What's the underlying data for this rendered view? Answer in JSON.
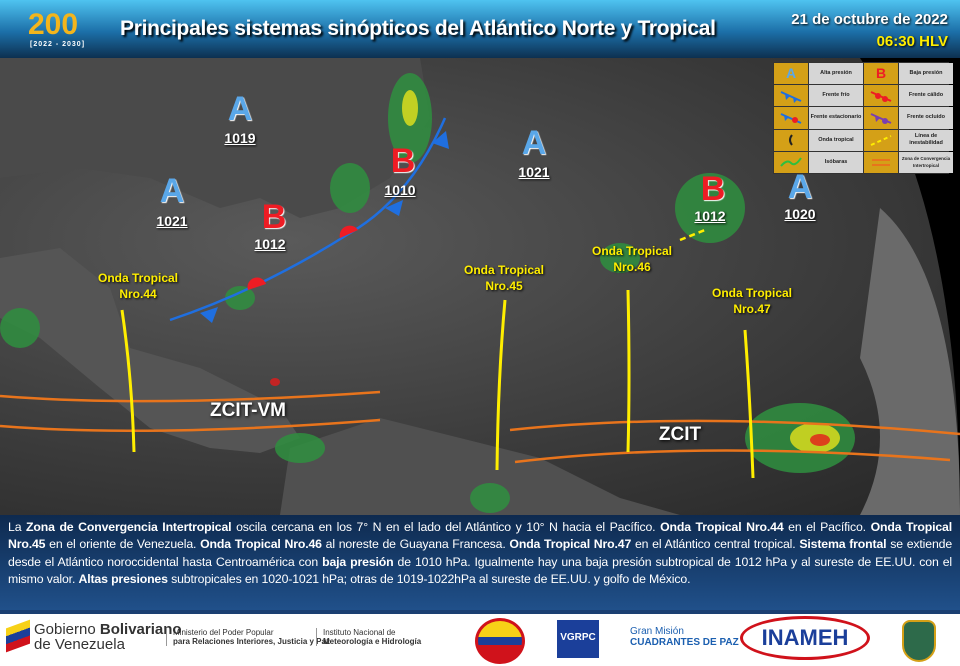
{
  "header": {
    "logo_text": "200",
    "logo_years": "[2022 - 2030]",
    "title": "Principales sistemas sinópticos del Atlántico Norte y Tropical",
    "date": "21 de octubre de 2022",
    "time": "06:30 HLV"
  },
  "map": {
    "pressure_centers": [
      {
        "type": "A",
        "value": "1019"
      },
      {
        "type": "A",
        "value": "1021"
      },
      {
        "type": "B",
        "value": "1012"
      },
      {
        "type": "B",
        "value": "1010"
      },
      {
        "type": "A",
        "value": "1021"
      },
      {
        "type": "B",
        "value": "1012"
      },
      {
        "type": "A",
        "value": "1020"
      }
    ],
    "tropical_waves": [
      {
        "line1": "Onda Tropical",
        "line2": "Nro.44"
      },
      {
        "line1": "Onda Tropical",
        "line2": "Nro.45"
      },
      {
        "line1": "Onda Tropical",
        "line2": "Nro.46"
      },
      {
        "line1": "Onda Tropical",
        "line2": "Nro.47"
      }
    ],
    "zcit_labels": [
      "ZCIT-VM",
      "ZCIT"
    ],
    "colors": {
      "high": "#5aa7e8",
      "low": "#ee1c24",
      "cold_front": "#1f6fe0",
      "warm_front": "#ee1c24",
      "tropical_wave": "#ffee00",
      "zcit": "#e8741c"
    }
  },
  "legend": {
    "items": [
      "A",
      "Alta presión",
      "B",
      "Baja presión",
      "Frente frío",
      "Frente cálido",
      "Frente estacionario",
      "Frente ocluido",
      "Onda tropical",
      "Línea de inestabilidad",
      "Isóbaras",
      "Zona de Convergencia Intertropical"
    ]
  },
  "description": {
    "segments": [
      [
        "La ",
        false
      ],
      [
        "Zona de Convergencia Intertropical",
        true
      ],
      [
        " oscila cercana en los 7° N en el lado del Atlántico y 10° N hacia el Pacífico. ",
        false
      ],
      [
        "Onda Tropical Nro.44",
        true
      ],
      [
        " en el Pacífico. ",
        false
      ],
      [
        "Onda Tropical Nro.45",
        true
      ],
      [
        " en el oriente de Venezuela. ",
        false
      ],
      [
        "Onda Tropical Nro.46",
        true
      ],
      [
        " al noreste de Guayana Francesa. ",
        false
      ],
      [
        "Onda Tropical Nro.47",
        true
      ],
      [
        " en el Atlántico central tropical. ",
        false
      ],
      [
        "Sistema frontal",
        true
      ],
      [
        " se extiende desde el Atlántico noroccidental hasta Centroamérica con ",
        false
      ],
      [
        "baja presión",
        true
      ],
      [
        " de 1010 hPa. Igualmente hay una baja presión subtropical de 1012 hPa y al sureste de EE.UU. con el mismo valor. ",
        false
      ],
      [
        "Altas presiones",
        true
      ],
      [
        " subtropicales en 1020-1021 hPa; otras de 1019-1022hPa al sureste de EE.UU. y golfo de México.",
        false
      ]
    ]
  },
  "footer": {
    "gov1": "Gobierno ",
    "gov2": "Bolivariano",
    "gov3": "de Venezuela",
    "ministry1": "Ministerio del Poder Popular",
    "ministry2": "para Relaciones Interiores, Justicia y Paz",
    "inst1": "Instituto Nacional de",
    "inst2": "Meteorología e Hidrología",
    "vgrpc": "VGRPC",
    "gm1": "Gran Misión",
    "gm2": "CUADRANTES DE PAZ",
    "inameh": "INAMEH"
  }
}
